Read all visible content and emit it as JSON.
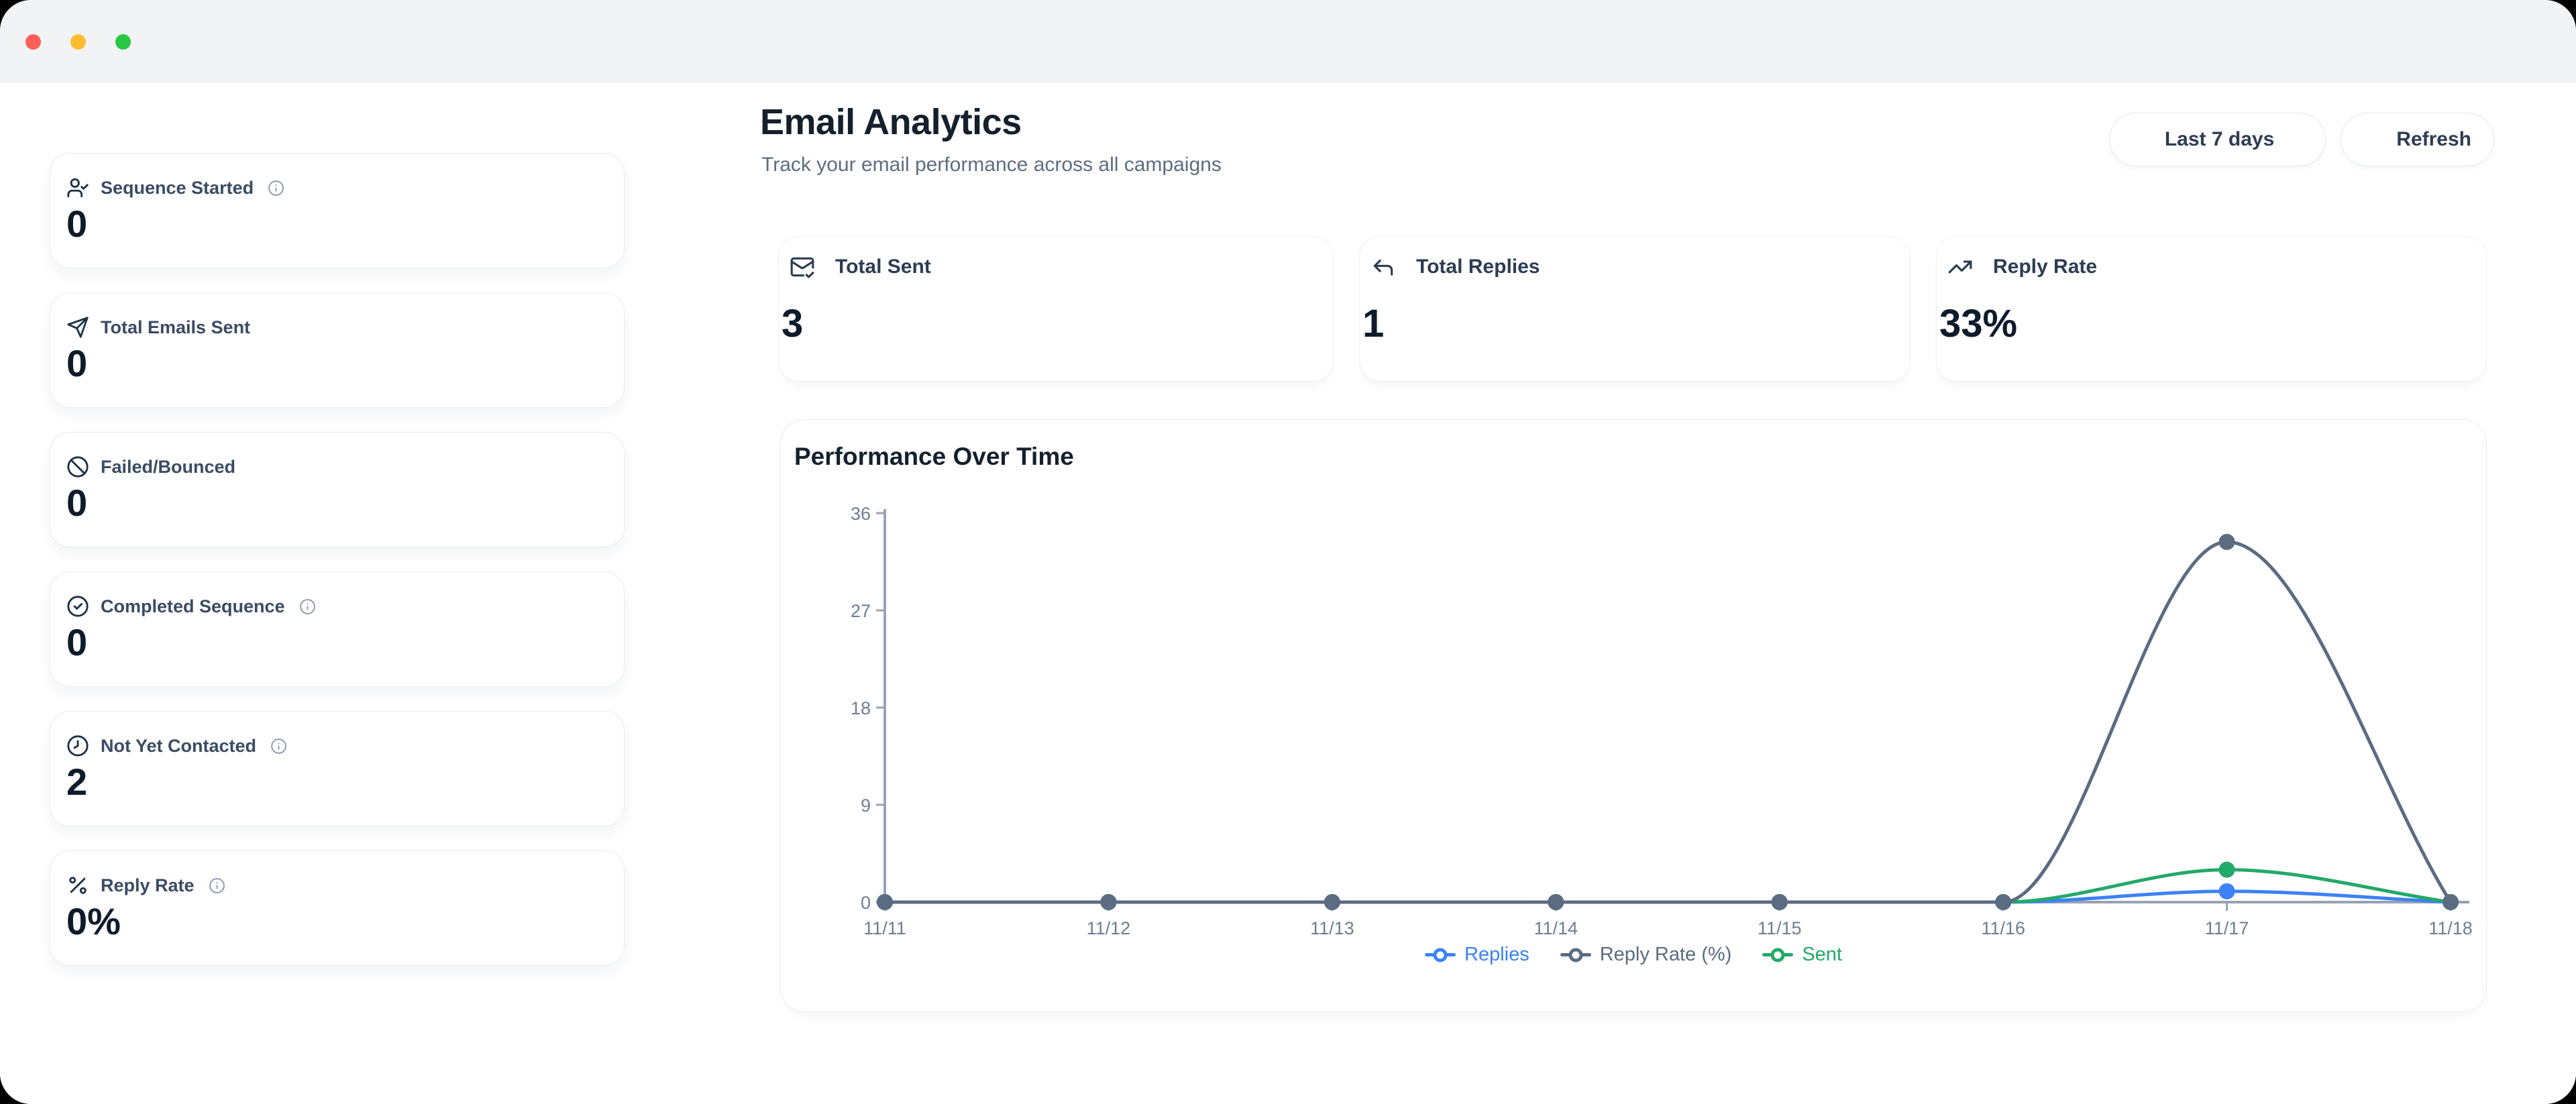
{
  "window": {
    "traffic_lights": [
      {
        "name": "close",
        "color": "#ff5f57"
      },
      {
        "name": "minimize",
        "color": "#febc2e"
      },
      {
        "name": "maximize",
        "color": "#28c840"
      }
    ]
  },
  "header": {
    "title": "Email Analytics",
    "subtitle": "Track your email performance across all campaigns",
    "date_range_label": "Last 7 days",
    "refresh_label": "Refresh"
  },
  "sidebar": {
    "cards": [
      {
        "icon": "user-check-icon",
        "label": "Sequence Started",
        "info": true,
        "value": "0"
      },
      {
        "icon": "send-icon",
        "label": "Total Emails Sent",
        "info": false,
        "value": "0"
      },
      {
        "icon": "ban-icon",
        "label": "Failed/Bounced",
        "info": false,
        "value": "0"
      },
      {
        "icon": "check-circle-icon",
        "label": "Completed Sequence",
        "info": true,
        "value": "0"
      },
      {
        "icon": "clock-icon",
        "label": "Not Yet Contacted",
        "info": true,
        "value": "2"
      },
      {
        "icon": "percent-icon",
        "label": "Reply Rate",
        "info": true,
        "value": "0%"
      }
    ]
  },
  "stats": [
    {
      "icon": "mail-check-icon",
      "label": "Total Sent",
      "value": "3"
    },
    {
      "icon": "reply-icon",
      "label": "Total Replies",
      "value": "1"
    },
    {
      "icon": "trending-up-icon",
      "label": "Reply Rate",
      "value": "33%"
    }
  ],
  "chart_data": {
    "type": "line",
    "title": "Performance Over Time",
    "x": [
      "11/11",
      "11/12",
      "11/13",
      "11/14",
      "11/15",
      "11/16",
      "11/17",
      "11/18"
    ],
    "ylim": [
      0,
      36
    ],
    "yticks": [
      0,
      9,
      18,
      27,
      36
    ],
    "grid": false,
    "legend_position": "bottom",
    "series": [
      {
        "name": "Replies",
        "color": "#3b82f6",
        "values": [
          0,
          0,
          0,
          0,
          0,
          0,
          1,
          0
        ]
      },
      {
        "name": "Sent",
        "color": "#23a969",
        "values": [
          0,
          0,
          0,
          0,
          0,
          0,
          3,
          0
        ]
      },
      {
        "name": "Reply Rate (%)",
        "color": "#5b6b82",
        "values": [
          0,
          0,
          0,
          0,
          0,
          0,
          33.33,
          0
        ]
      }
    ],
    "legend_order": [
      0,
      2,
      1
    ],
    "axis_color": "#98a3b2",
    "tick_label_color": "#6e7d90"
  }
}
